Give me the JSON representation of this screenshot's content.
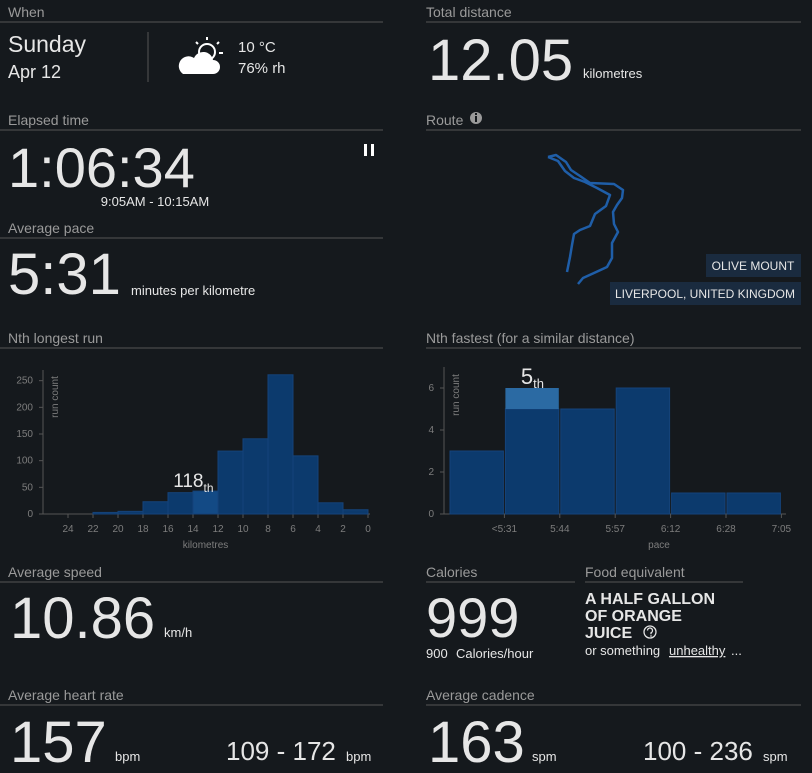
{
  "when": {
    "label": "When",
    "day": "Sunday",
    "date": "Apr 12",
    "temperature": "10 °C",
    "humidity": "76% rh"
  },
  "total_distance": {
    "label": "Total distance",
    "value": "12.05",
    "unit": "kilometres"
  },
  "elapsed_time": {
    "label": "Elapsed time",
    "value": "1:06:34",
    "range": "9:05AM - 10:15AM"
  },
  "average_pace": {
    "label": "Average pace",
    "value": "5:31",
    "unit": "minutes per kilometre"
  },
  "route": {
    "label": "Route",
    "places": [
      "OLIVE MOUNT",
      "LIVERPOOL, UNITED KINGDOM"
    ]
  },
  "average_speed": {
    "label": "Average speed",
    "value": "10.86",
    "unit": "km/h"
  },
  "calories": {
    "label": "Calories",
    "value": "999",
    "rate": "900",
    "rate_unit": "Calories/hour"
  },
  "food_equivalent": {
    "label": "Food equivalent",
    "lines": [
      "A HALF GALLON",
      "OF ORANGE",
      "JUICE"
    ],
    "note": "or something",
    "link": "unhealthy",
    "ellipsis": "..."
  },
  "average_heart_rate": {
    "label": "Average heart rate",
    "value": "157",
    "unit": "bpm",
    "range": "109 - 172",
    "range_unit": "bpm"
  },
  "average_cadence": {
    "label": "Average cadence",
    "value": "163",
    "unit": "spm",
    "range": "100 - 236",
    "range_unit": "spm"
  },
  "chart_data": [
    {
      "type": "histogram",
      "title": "Nth longest run",
      "bins": [
        0,
        2,
        4,
        6,
        8,
        10,
        12,
        14,
        16,
        18,
        20,
        22
      ],
      "values": [
        8,
        21,
        109,
        261,
        141,
        118,
        43,
        40,
        23,
        5,
        3
      ],
      "xlim": [
        26,
        0
      ],
      "xticks": [
        24,
        22,
        20,
        18,
        16,
        14,
        12,
        10,
        8,
        6,
        4,
        2,
        0
      ],
      "ylim": [
        0,
        270
      ],
      "yticks": [
        0,
        50,
        100,
        150,
        200,
        250
      ],
      "x_label": "kilometres",
      "y_label": "run count",
      "color": "#0c3a6d",
      "highlight_index": 6,
      "highlight_color": "#134a85",
      "rank": 118,
      "rank_suffix": "th"
    },
    {
      "type": "bar",
      "title": "Nth fastest (for a similar distance)",
      "bin_labels": [
        null,
        "<5:31",
        "5:44",
        "5:57",
        "6:12",
        "6:28",
        "7:05"
      ],
      "values": [
        3,
        5,
        5,
        6,
        1,
        1
      ],
      "highlight": {
        "index": 1,
        "value": 1
      },
      "ylim": [
        0,
        7
      ],
      "yticks": [
        0,
        2,
        4,
        6
      ],
      "x_label": "pace",
      "y_label": "run count",
      "color": "#0c3a6d",
      "highlight_color": "#2b6aa3",
      "rank": 5,
      "rank_suffix": "th"
    }
  ]
}
